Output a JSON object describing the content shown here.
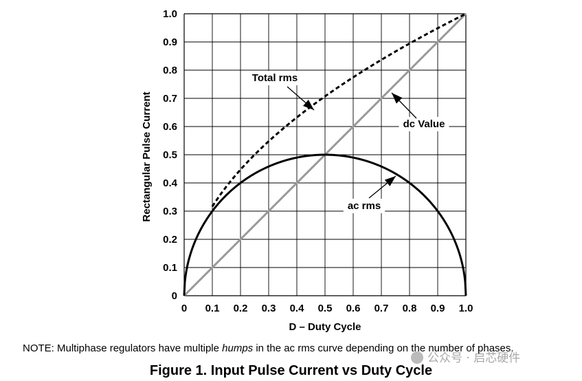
{
  "chart_data": {
    "type": "line",
    "xlabel": "D – Duty Cycle",
    "ylabel": "Rectangular Pulse Current",
    "xlim": [
      0,
      1
    ],
    "ylim": [
      0,
      1
    ],
    "grid": true,
    "x_ticks": [
      "0",
      "0.1",
      "0.2",
      "0.3",
      "0.4",
      "0.5",
      "0.6",
      "0.7",
      "0.8",
      "0.9",
      "1.0"
    ],
    "y_ticks": [
      "0",
      "0.1",
      "0.2",
      "0.3",
      "0.4",
      "0.5",
      "0.6",
      "0.7",
      "0.8",
      "0.9",
      "1.0"
    ],
    "x": [
      0,
      0.01,
      0.02,
      0.05,
      0.1,
      0.15,
      0.2,
      0.25,
      0.3,
      0.35,
      0.4,
      0.45,
      0.5,
      0.55,
      0.6,
      0.65,
      0.7,
      0.75,
      0.8,
      0.85,
      0.9,
      0.95,
      0.98,
      0.99,
      1.0
    ],
    "series": [
      {
        "name": "Total rms",
        "style": "dashed",
        "color": "#000000",
        "values": [
          0,
          0.1,
          0.141,
          0.224,
          0.316,
          0.387,
          0.447,
          0.5,
          0.548,
          0.592,
          0.632,
          0.671,
          0.707,
          0.742,
          0.775,
          0.806,
          0.837,
          0.866,
          0.894,
          0.922,
          0.949,
          0.975,
          0.99,
          0.995,
          1.0
        ]
      },
      {
        "name": "dc Value",
        "style": "solid",
        "color": "#999999",
        "values": [
          0,
          0.01,
          0.02,
          0.05,
          0.1,
          0.15,
          0.2,
          0.25,
          0.3,
          0.35,
          0.4,
          0.45,
          0.5,
          0.55,
          0.6,
          0.65,
          0.7,
          0.75,
          0.8,
          0.85,
          0.9,
          0.95,
          0.98,
          0.99,
          1.0
        ]
      },
      {
        "name": "ac rms",
        "style": "solid",
        "color": "#000000",
        "values": [
          0,
          0.099,
          0.14,
          0.218,
          0.3,
          0.357,
          0.4,
          0.433,
          0.458,
          0.477,
          0.49,
          0.497,
          0.5,
          0.497,
          0.49,
          0.477,
          0.458,
          0.433,
          0.4,
          0.357,
          0.3,
          0.218,
          0.14,
          0.099,
          0
        ]
      }
    ],
    "annotations": [
      {
        "text": "Total rms",
        "series": "Total rms"
      },
      {
        "text": "dc Value",
        "series": "dc Value"
      },
      {
        "text": "ac rms",
        "series": "ac rms"
      }
    ]
  },
  "note": {
    "prefix": "NOTE:  Multiphase regulators have multiple ",
    "emphasis": "humps",
    "suffix": " in the ac rms curve depending on the number of phases."
  },
  "caption": "Figure 1. Input Pulse Current vs Duty Cycle",
  "watermark": "公众号 · 启芯硬件"
}
